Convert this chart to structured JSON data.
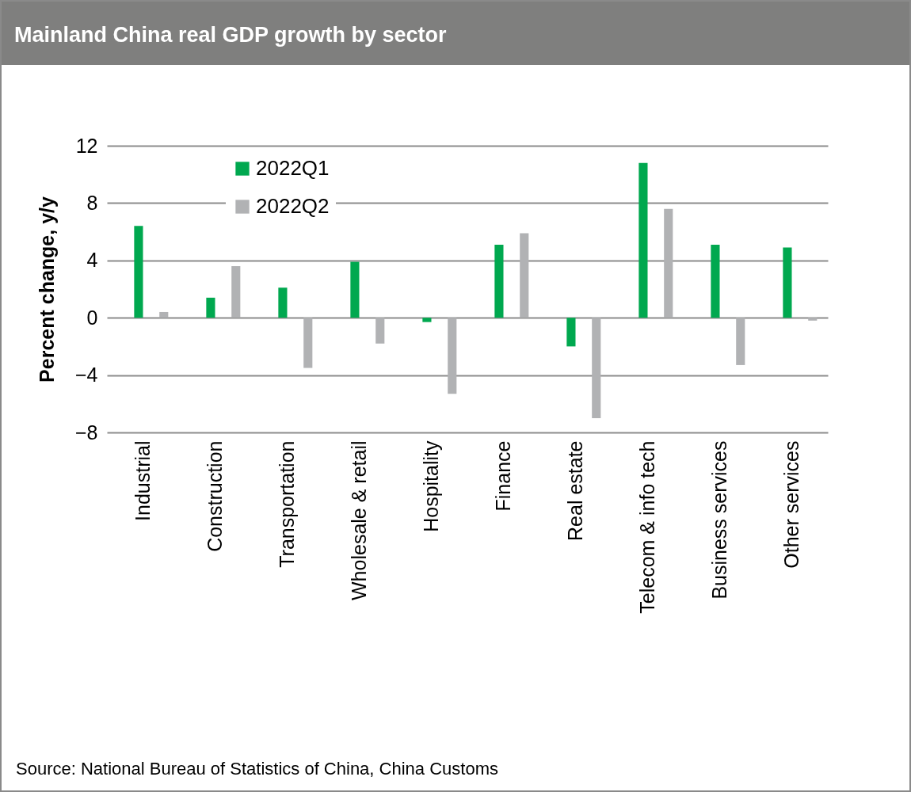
{
  "chart_data": {
    "type": "bar",
    "title": "Mainland China real GDP growth by sector",
    "ylabel": "Percent  change, y/y",
    "categories": [
      "Industrial",
      "Construction",
      "Transportation",
      "Wholesale & retail",
      "Hospitality",
      "Finance",
      "Real estate",
      "Telecom & info tech",
      "Business services",
      "Other services"
    ],
    "series": [
      {
        "name": "2022Q1",
        "color": "#00a84f",
        "values": [
          6.4,
          1.4,
          2.1,
          3.9,
          -0.3,
          5.1,
          -2.0,
          10.8,
          5.1,
          4.9
        ]
      },
      {
        "name": "2022Q2",
        "color": "#b1b2b4",
        "values": [
          0.4,
          3.6,
          -3.5,
          -1.8,
          -5.3,
          5.9,
          -7.0,
          7.6,
          -3.3,
          -0.2
        ]
      }
    ],
    "ylim": [
      -8,
      12
    ],
    "yticks": [
      -8,
      -4,
      0,
      4,
      8,
      12
    ],
    "grid": "y",
    "legend": "top left",
    "annotations": [
      "Source: National Bureau of Statistics of China, China Customs"
    ]
  }
}
